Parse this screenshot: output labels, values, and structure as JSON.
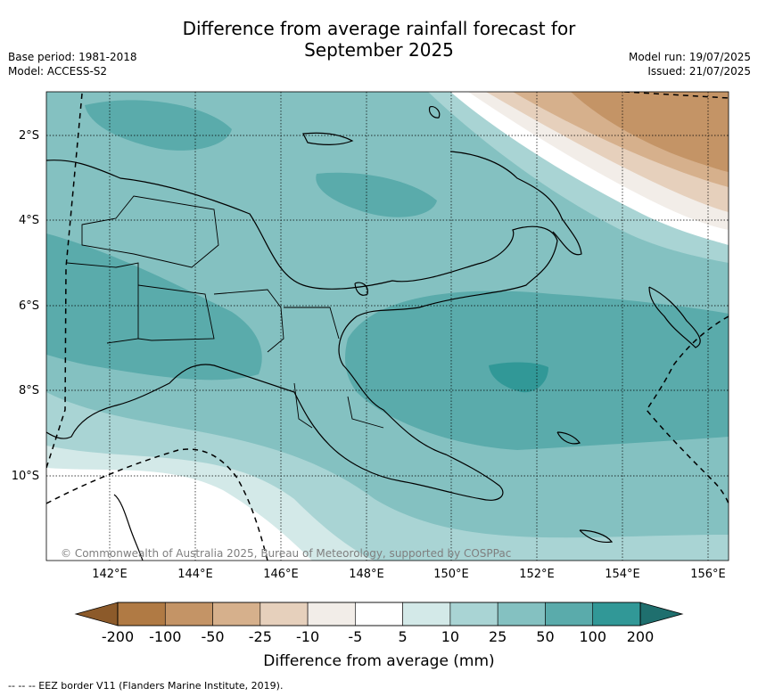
{
  "title_line1": "Difference from average rainfall forecast for",
  "title_line2": "September 2025",
  "meta_left": [
    "Base period: 1981-2018",
    "Model: ACCESS-S2"
  ],
  "meta_right": [
    "Model run: 19/07/2025",
    "Issued: 21/07/2025"
  ],
  "copyright": "© Commonwealth of Australia 2025, Bureau of Meteorology, supported by COSPPac",
  "lat_ticks": [
    {
      "label": "2°S",
      "lat": -2
    },
    {
      "label": "4°S",
      "lat": -4
    },
    {
      "label": "6°S",
      "lat": -6
    },
    {
      "label": "8°S",
      "lat": -8
    },
    {
      "label": "10°S",
      "lat": -10
    }
  ],
  "lon_ticks": [
    {
      "label": "142°E",
      "lon": 142
    },
    {
      "label": "144°E",
      "lon": 144
    },
    {
      "label": "146°E",
      "lon": 146
    },
    {
      "label": "148°E",
      "lon": 148
    },
    {
      "label": "150°E",
      "lon": 150
    },
    {
      "label": "152°E",
      "lon": 152
    },
    {
      "label": "154°E",
      "lon": 154
    },
    {
      "label": "156°E",
      "lon": 156
    }
  ],
  "colorbar": {
    "title": "Difference from average (mm)",
    "labels": [
      "-200",
      "-100",
      "-50",
      "-25",
      "-10",
      "-5",
      "5",
      "10",
      "25",
      "50",
      "100",
      "200"
    ],
    "colors": [
      "#8c5a2a",
      "#b07a44",
      "#c49466",
      "#d6b08c",
      "#e6d0bc",
      "#f2ede8",
      "#ffffff",
      "#d3e9e8",
      "#a9d4d4",
      "#84c1c1",
      "#5aabab",
      "#319897",
      "#1f6f6e"
    ]
  },
  "footer": "--  --  -- EEZ border V11 (Flanders Marine Institute, 2019)."
}
